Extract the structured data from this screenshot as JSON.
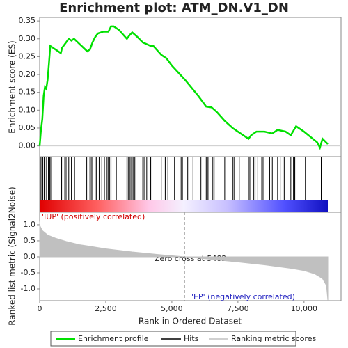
{
  "chart_data": {
    "type": "gsea",
    "title": "Enrichment plot: ATM_DN.V1_DN",
    "xlabel": "Rank in Ordered Dataset",
    "xlim": [
      0,
      11400
    ],
    "xticks": [
      0,
      {
        "value": 2500,
        "label": "2,500"
      },
      {
        "value": 5000,
        "label": "5,000"
      },
      {
        "value": 7500,
        "label": "7,500"
      },
      {
        "value": 10000,
        "label": "10,000"
      }
    ],
    "es": {
      "name": "Enrichment profile",
      "ylabel": "Enrichment score (ES)",
      "color": "#00e000",
      "ylim": [
        -0.03,
        0.36
      ],
      "yticks": [
        {
          "value": 0,
          "label": "0.00"
        },
        0.05,
        {
          "value": 0.1,
          "label": "0.10"
        },
        0.15,
        {
          "value": 0.2,
          "label": "0.20"
        },
        0.25,
        {
          "value": 0.3,
          "label": "0.30"
        },
        0.35
      ],
      "x": [
        0,
        50,
        100,
        150,
        200,
        250,
        300,
        350,
        400,
        800,
        850,
        900,
        1000,
        1100,
        1200,
        1300,
        1800,
        1900,
        2000,
        2100,
        2200,
        2400,
        2600,
        2700,
        2800,
        3000,
        3300,
        3400,
        3500,
        3700,
        3900,
        4200,
        4300,
        4600,
        4800,
        5000,
        5500,
        6000,
        6300,
        6500,
        6700,
        7000,
        7300,
        7600,
        7900,
        8000,
        8200,
        8500,
        8800,
        9000,
        9300,
        9500,
        9700,
        10000,
        10500,
        10600,
        10700,
        10900
      ],
      "values": [
        0,
        0.045,
        0.075,
        0.14,
        0.165,
        0.16,
        0.185,
        0.23,
        0.28,
        0.26,
        0.275,
        0.28,
        0.29,
        0.3,
        0.295,
        0.3,
        0.265,
        0.27,
        0.29,
        0.305,
        0.315,
        0.32,
        0.32,
        0.335,
        0.335,
        0.325,
        0.3,
        0.31,
        0.318,
        0.305,
        0.29,
        0.28,
        0.28,
        0.255,
        0.245,
        0.225,
        0.185,
        0.14,
        0.11,
        0.108,
        0.095,
        0.07,
        0.05,
        0.035,
        0.02,
        0.03,
        0.04,
        0.04,
        0.035,
        0.045,
        0.04,
        0.03,
        0.055,
        0.04,
        0.01,
        -0.005,
        0.02,
        0.005
      ]
    },
    "hits": {
      "name": "Hits",
      "color": "#000000",
      "x": [
        30,
        80,
        120,
        170,
        200,
        260,
        330,
        380,
        420,
        830,
        880,
        950,
        1000,
        1100,
        1200,
        1320,
        1780,
        1900,
        1950,
        2000,
        2100,
        2150,
        2250,
        2350,
        2450,
        2550,
        2600,
        2650,
        2700,
        2900,
        3300,
        3350,
        3400,
        3450,
        3500,
        3550,
        3600,
        3900,
        3950,
        4050,
        4200,
        4250,
        4600,
        4700,
        4750,
        4850,
        5100,
        5200,
        5350,
        5400,
        5600,
        5800,
        6100,
        6300,
        6350,
        6400,
        6550,
        6600,
        7000,
        7300,
        7350,
        7550,
        7900,
        7950,
        8100,
        8150,
        8250,
        8400,
        8450,
        8700,
        8800,
        9000,
        9100,
        9250,
        9500,
        9600,
        9650,
        9700,
        10050,
        10650
      ]
    },
    "metric": {
      "name": "Ranking metric scores",
      "ylabel": "Ranked list metric (Signal2Noise)",
      "color": "#c0c0c0",
      "ylim": [
        -1.37,
        1.39
      ],
      "yticks": [
        {
          "value": -1,
          "label": "-1.0"
        },
        -0.5,
        {
          "value": 0,
          "label": "0.0"
        },
        0.5,
        {
          "value": 1,
          "label": "1.0"
        }
      ],
      "x": [
        0,
        20,
        100,
        300,
        600,
        1000,
        1500,
        2500,
        3500,
        4500,
        5482,
        6500,
        7500,
        8500,
        9500,
        10000,
        10400,
        10700,
        10850,
        10900
      ],
      "values": [
        1.1,
        0.95,
        0.82,
        0.68,
        0.58,
        0.48,
        0.38,
        0.25,
        0.15,
        0.07,
        0,
        -0.08,
        -0.16,
        -0.25,
        -0.36,
        -0.43,
        -0.53,
        -0.68,
        -0.9,
        -1.35
      ],
      "zero_cross": 5482,
      "zero_label": "Zero cross at 5482",
      "pos_label": "'IUP' (positively correlated)",
      "neg_label": "'EP' (negatively correlated)"
    }
  }
}
